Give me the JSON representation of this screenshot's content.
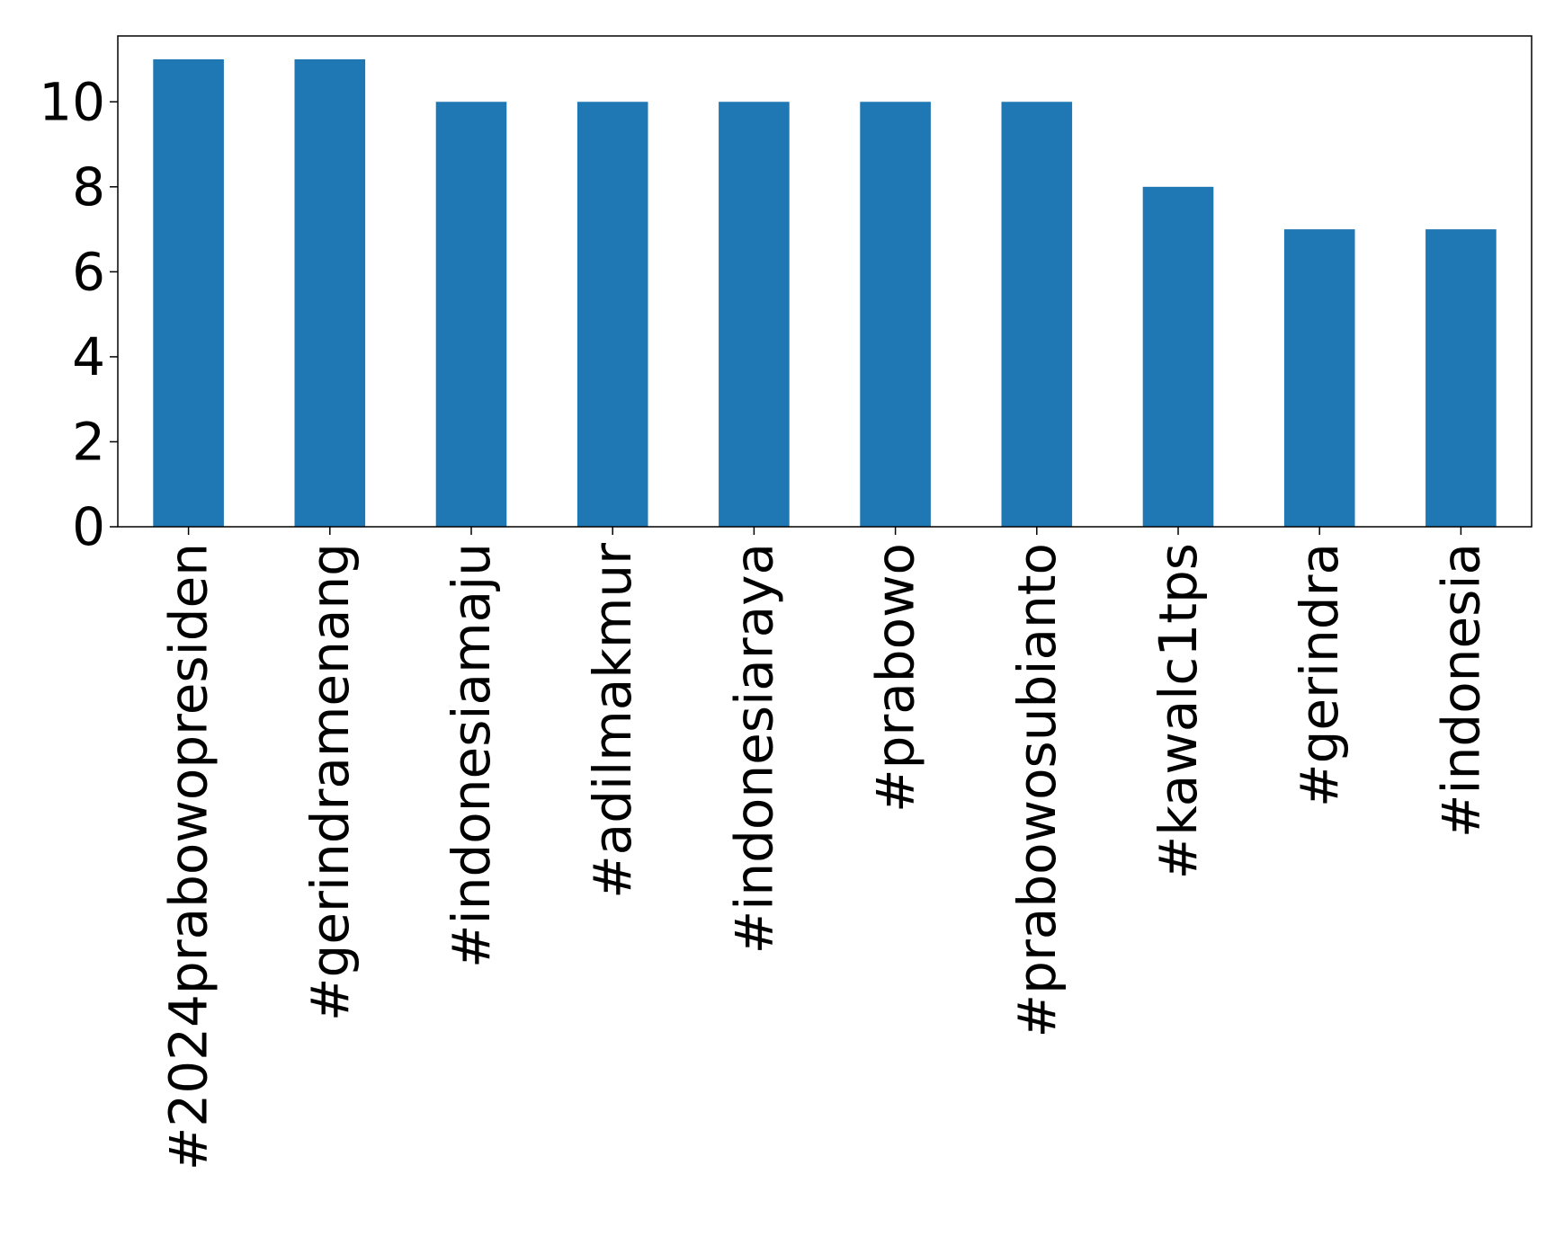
{
  "chart_data": {
    "type": "bar",
    "title": "",
    "xlabel": "",
    "ylabel": "",
    "categories": [
      "#2024prabowopresiden",
      "#gerindramenang",
      "#indonesiamaju",
      "#adilmakmur",
      "#indonesiaraya",
      "#prabowo",
      "#prabowosubianto",
      "#kawalc1tps",
      "#gerindra",
      "#indonesia"
    ],
    "values": [
      11,
      11,
      10,
      10,
      10,
      10,
      10,
      8,
      7,
      7
    ],
    "ylim": [
      0,
      11.55
    ],
    "yticks": [
      0,
      2,
      4,
      6,
      8,
      10
    ],
    "ytick_labels": [
      "0",
      "2",
      "4",
      "6",
      "8",
      "10"
    ],
    "grid": false,
    "legend": "none",
    "bar_color": "#1f77b4"
  }
}
